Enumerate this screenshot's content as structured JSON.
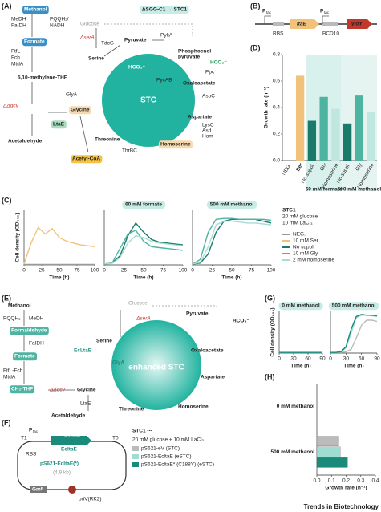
{
  "panel_a": {
    "labels": [
      "(A)",
      "ΔSGG-C1 → STC1",
      "Methanol",
      "MeDH",
      "FaIDH",
      "PQQH₂/",
      "NADH",
      "Formate",
      "FtfL",
      "Fch",
      "MtdA",
      "5,10-methylene-THF",
      "GlyA",
      "ΔΔgcv",
      "Glycine",
      "LtaE",
      "Acetaldehyde",
      "Acetyl-CoA",
      "Glucose",
      "ΔserA",
      "TdcG",
      "Serine",
      "Pyruvate",
      "PykA",
      "Phosphoenol",
      "pyruvate",
      "HCO₃⁻",
      "HCO₃⁻",
      "Ppc",
      "PycAB",
      "Oxaloacetate",
      "AspC",
      "STC",
      "Aspartate",
      "LysC",
      "Asd",
      "Hom",
      "Homoserine",
      "Threonine",
      "ThrBC"
    ]
  },
  "panel_b": {
    "labels": [
      "(B)",
      "P",
      "tac",
      "RBS",
      "ltaE",
      "P",
      "tac",
      "BCD10",
      "yioY"
    ]
  },
  "panel_c": {
    "label": "(C)",
    "legend_header": [
      "STC1",
      "20 mM glucose",
      "10 mM LaCl₃"
    ]
  },
  "panel_d": {
    "label": "(D)"
  },
  "panel_e": {
    "labels": [
      "(E)",
      "Methanol",
      "MeDH",
      "PQQH₂",
      "Formaldehyde",
      "FaIDH",
      "Formate",
      "FtfL-Fch",
      "MtdA",
      "CH₂-THF",
      "ΔΔgcv",
      "Glycine",
      "LtaE",
      "Acetaldehyde",
      "Glucose",
      "ΔserA",
      "Pyruvate",
      "HCO₃⁻",
      "Serine",
      "EcLtaE",
      "GlyA",
      "enhanced STC",
      "Oxaloacetate",
      "Aspartate",
      "Homoserine",
      "Threonine"
    ]
  },
  "panel_f": {
    "labels": [
      "(F)",
      "P",
      "tac",
      "T1",
      "T0",
      "RBS",
      "EcltaE",
      "EcltaE",
      "pS621-EcltaE(*)",
      "(4.9 kb)",
      "Gmᴿ",
      "oriV(RK2)"
    ],
    "legend_header": [
      "STC1 ---",
      "20 mM glucose + 10 mM LaCl₃"
    ]
  },
  "panel_g": {
    "label": "(G)"
  },
  "panel_h": {
    "label": "(H)"
  },
  "footer": "Trends in Biotechnology",
  "chart_data": [
    {
      "type": "line",
      "xlabel": "Time (h)",
      "ylabel": "Cell density (OD₆₀₀)",
      "x": [
        0,
        10,
        20,
        30,
        40,
        50,
        60,
        70,
        80,
        90,
        100
      ],
      "xlim": [
        0,
        100
      ],
      "xticks": [
        0,
        25,
        50,
        75,
        100
      ],
      "ylim": [
        0,
        3
      ],
      "series": [
        {
          "name": "NEG.",
          "color": "#9a9a9a",
          "values": [
            0.02,
            0.02,
            0.02,
            0.02,
            0.02,
            0.02,
            0.02,
            0.02,
            0.02,
            0.02,
            0.02
          ]
        },
        {
          "name": "10 mM Ser",
          "color": "#f0c27b",
          "values": [
            0.05,
            1.2,
            2.05,
            1.7,
            2.0,
            1.5,
            1.3,
            1.2,
            1.1,
            1.05,
            1.0
          ]
        }
      ]
    },
    {
      "type": "line",
      "title": "60 mM formate",
      "xlabel": "Time (h)",
      "x": [
        0,
        10,
        20,
        30,
        40,
        50,
        60,
        70,
        80,
        90,
        100
      ],
      "xlim": [
        0,
        100
      ],
      "xticks": [
        0,
        25,
        50,
        75,
        100
      ],
      "ylim": [
        0,
        3
      ],
      "series": [
        {
          "name": "No suppl.",
          "color": "#1a7a6a",
          "values": [
            0.05,
            0.1,
            0.5,
            1.6,
            2.3,
            1.8,
            1.4,
            1.25,
            1.2,
            1.15,
            1.1
          ]
        },
        {
          "name": "10 mM Gly",
          "color": "#4fb3a2",
          "values": [
            0.05,
            0.1,
            0.9,
            1.7,
            1.9,
            1.3,
            1.0,
            0.95,
            0.9,
            0.85,
            0.8
          ]
        },
        {
          "name": "2 mM homoserine",
          "color": "#a6ddd4",
          "values": [
            0.05,
            0.08,
            0.4,
            1.2,
            1.6,
            1.5,
            1.3,
            1.2,
            1.15,
            1.1,
            1.05
          ]
        }
      ]
    },
    {
      "type": "line",
      "title": "500 mM methanol",
      "xlabel": "Time (h)",
      "x": [
        0,
        10,
        20,
        30,
        40,
        50,
        60,
        70,
        80,
        90,
        100
      ],
      "xlim": [
        0,
        100
      ],
      "xticks": [
        0,
        25,
        50,
        75,
        100
      ],
      "ylim": [
        0,
        3
      ],
      "series": [
        {
          "color": "#1a7a6a",
          "values": [
            0.05,
            0.1,
            0.6,
            1.8,
            2.4,
            2.5,
            2.5,
            2.5,
            2.5,
            2.4,
            2.3
          ]
        },
        {
          "color": "#4fb3a2",
          "values": [
            0.05,
            0.3,
            1.8,
            2.5,
            2.55,
            2.55,
            2.5,
            2.5,
            2.5,
            2.5,
            2.45
          ]
        },
        {
          "color": "#a6ddd4",
          "values": [
            0.05,
            0.15,
            1.0,
            2.2,
            2.4,
            2.4,
            2.35,
            2.3,
            2.3,
            2.25,
            2.2
          ]
        }
      ]
    },
    {
      "type": "bar",
      "ylabel": "Growth rate (h⁻¹)",
      "categories": [
        "NEG.",
        "Ser",
        "No suppl.",
        "Gly",
        "Homoserine",
        "No suppl.",
        "Gly",
        "Homoserine"
      ],
      "values": [
        0,
        0.64,
        0.3,
        0.48,
        0.39,
        0.28,
        0.49,
        0.37
      ],
      "colors": [
        "#9a9a9a",
        "#f0c27b",
        "#1a7a6a",
        "#4fb3a2",
        "#bfe6df",
        "#1a7a6a",
        "#4fb3a2",
        "#bfe6df"
      ],
      "ylim": [
        0,
        0.8
      ],
      "yticks": [
        {
          "value": 0,
          "label": "0.0"
        },
        {
          "value": 0.2,
          "label": "0.2"
        },
        {
          "value": 0.4,
          "label": "0.4"
        },
        {
          "value": 0.6,
          "label": "0.6"
        },
        {
          "value": 0.8,
          "label": "0.8"
        }
      ],
      "groups": [
        "60 mM formate",
        "500 mM methanol"
      ]
    },
    {
      "type": "line",
      "title": "0 mM methanol",
      "xlabel": "Time (h)",
      "ylabel": "Cell density (OD₆₀₀)",
      "x": [
        0,
        10,
        20,
        30,
        40,
        50,
        60,
        70,
        80,
        90
      ],
      "xlim": [
        0,
        90
      ],
      "xticks": [
        0,
        30,
        60,
        90
      ],
      "ylim": [
        0,
        3.3
      ],
      "series": [
        {
          "color": "#bbbbbb",
          "values": [
            0.05,
            0.05,
            0.05,
            0.05,
            0.05,
            0.05,
            0.05,
            0.05,
            0.05,
            0.05
          ]
        },
        {
          "color": "#9fdcd2",
          "values": [
            0.05,
            0.05,
            0.05,
            0.05,
            0.05,
            0.05,
            0.05,
            0.05,
            0.05,
            0.05
          ]
        },
        {
          "color": "#1a8a7a",
          "values": [
            0.05,
            0.05,
            0.05,
            0.05,
            0.05,
            0.05,
            0.05,
            0.05,
            0.05,
            0.05
          ]
        }
      ]
    },
    {
      "type": "line",
      "title": "500 mM methanol",
      "xlabel": "Time (h)",
      "x": [
        0,
        10,
        20,
        30,
        40,
        50,
        60,
        70,
        80,
        90
      ],
      "xlim": [
        0,
        90
      ],
      "xticks": [
        0,
        30,
        60,
        90
      ],
      "ylim": [
        0,
        3.3
      ],
      "series": [
        {
          "color": "#bbbbbb",
          "values": [
            0.05,
            0.05,
            0.05,
            0.1,
            0.3,
            1.2,
            2.2,
            2.6,
            2.6,
            2.5
          ]
        },
        {
          "color": "#9fdcd2",
          "values": [
            0.05,
            0.05,
            0.1,
            0.4,
            1.6,
            2.8,
            3.0,
            3.0,
            2.95,
            2.9
          ]
        },
        {
          "color": "#1a8a7a",
          "values": [
            0.05,
            0.05,
            0.1,
            0.5,
            1.9,
            2.9,
            3.05,
            3.0,
            3.0,
            2.95
          ]
        }
      ]
    },
    {
      "type": "hbar",
      "xlabel": "Growth rate (h⁻¹)",
      "categories": [
        "0 mM methanol",
        "500 mM methanol"
      ],
      "xlim": [
        0,
        0.4
      ],
      "xticks": [
        {
          "value": 0,
          "label": "0.0"
        },
        {
          "value": 0.1,
          "label": "0.1"
        },
        {
          "value": 0.2,
          "label": "0.2"
        },
        {
          "value": 0.3,
          "label": "0.3"
        },
        {
          "value": 0.4,
          "label": "0.4"
        }
      ],
      "series": [
        {
          "name": "pS621-eV (STC)",
          "color": "#bbbbbb",
          "values": [
            0,
            0.15
          ]
        },
        {
          "name": "pS621-EcltaE (eSTC)",
          "color": "#9fdcd2",
          "values": [
            0,
            0.16
          ]
        },
        {
          "name": "pS621-EcltaE* (C188Y) (eSTC)",
          "color": "#1a8a7a",
          "values": [
            0,
            0.21
          ]
        }
      ]
    }
  ]
}
